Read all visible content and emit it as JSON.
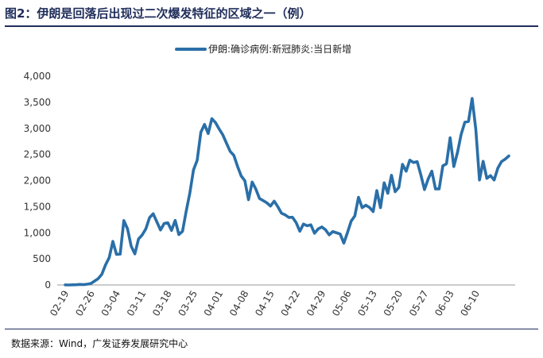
{
  "figure": {
    "title": "图2：伊朗是回落后出现过二次爆发特征的区域之一（例）",
    "source": "数据来源：Wind，广发证券发展研究中心"
  },
  "colors": {
    "line": "#2a6fa8",
    "axis": "#999999",
    "title": "#1f2d5a"
  },
  "chart_data": {
    "type": "line",
    "ylim": [
      0,
      4000
    ],
    "yticks": [
      "0",
      "500",
      "1,000",
      "1,500",
      "2,000",
      "2,500",
      "3,000",
      "3,500",
      "4,000"
    ],
    "ytick_values": [
      0,
      500,
      1000,
      1500,
      2000,
      2500,
      3000,
      3500,
      4000
    ],
    "xticks": [
      "02-19",
      "02-26",
      "03-04",
      "03-11",
      "03-18",
      "03-25",
      "04-01",
      "04-08",
      "04-15",
      "04-22",
      "04-29",
      "05-06",
      "05-13",
      "05-20",
      "05-27",
      "06-03",
      "06-10"
    ],
    "legend_position": "top-center",
    "grid": false,
    "series": [
      {
        "name": "伊朗:确诊病例:新冠肺炎:当日新增",
        "values": [
          2,
          0,
          3,
          5,
          10,
          7,
          15,
          28,
          75,
          122,
          205,
          385,
          523,
          835,
          586,
          591,
          1234,
          1076,
          743,
          595,
          881,
          958,
          1075,
          1289,
          1365,
          1209,
          1053,
          1178,
          1192,
          1046,
          1237,
          966,
          1028,
          1411,
          1762,
          2206,
          2389,
          2926,
          3076,
          2901,
          3186,
          3111,
          2987,
          2875,
          2715,
          2560,
          2483,
          2274,
          2089,
          1997,
          1634,
          1972,
          1837,
          1657,
          1617,
          1574,
          1512,
          1606,
          1499,
          1374,
          1343,
          1294,
          1297,
          1194,
          1030,
          1168,
          1134,
          1153,
          991,
          1073,
          1112,
          1058,
          960,
          1023,
          1000,
          976,
          802,
          1006,
          1223,
          1323,
          1680,
          1481,
          1529,
          1485,
          1406,
          1808,
          1481,
          1958,
          1757,
          2102,
          1787,
          1869,
          2311,
          2180,
          2392,
          2346,
          2364,
          2111,
          1828,
          2030,
          2180,
          1841,
          1841,
          2282,
          2323,
          2821,
          2269,
          2540,
          2886,
          3117,
          3134,
          3574,
          2979,
          2011,
          2369,
          2043,
          2095,
          2011,
          2238,
          2364,
          2410,
          2472
        ]
      }
    ]
  }
}
